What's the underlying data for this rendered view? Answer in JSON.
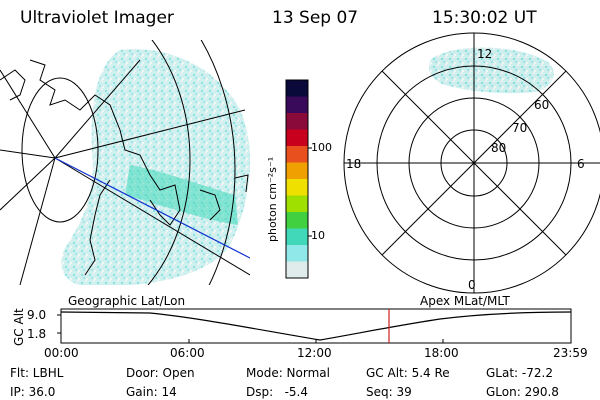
{
  "header": {
    "instrument": "Ultraviolet Imager",
    "date": "13 Sep 07",
    "time": "15:30:02 UT"
  },
  "colorbar": {
    "label": "photon cm⁻²s⁻¹",
    "ticks": [
      "100",
      "10"
    ],
    "colors": [
      "#0a0a3a",
      "#3a0a5a",
      "#8a0a3a",
      "#c8001e",
      "#e8501e",
      "#f0a000",
      "#f0e000",
      "#a0e000",
      "#40d040",
      "#40d8b8",
      "#90e8e8",
      "#e0ecec"
    ]
  },
  "polar": {
    "mlt_labels": {
      "top": "12",
      "left": "18",
      "right": "6",
      "bottom": "0"
    },
    "lat_labels": [
      "60",
      "70",
      "80"
    ]
  },
  "timeline": {
    "left_label": "Geographic Lat/Lon",
    "right_label": "Apex MLat/MLT",
    "y_title": "GC Alt",
    "y_ticks": [
      "9.0",
      "1.8"
    ],
    "x_ticks": [
      "00:00",
      "06:00",
      "12:00",
      "18:00",
      "23:59"
    ],
    "marker_color": "#cc2222",
    "curve_color": "#000000"
  },
  "status": {
    "filter": "Flt: LBHL",
    "door": "Door: Open",
    "mode": "Mode: Normal",
    "gc_alt": "GC Alt: 5.4 Re",
    "glat": "GLat: -72.2",
    "ip": "IP: 36.0",
    "gain": "Gain: 14",
    "dsp": "Dsp:   -5.4",
    "seq": "Seq: 39",
    "glon": "GLon: 290.8"
  }
}
